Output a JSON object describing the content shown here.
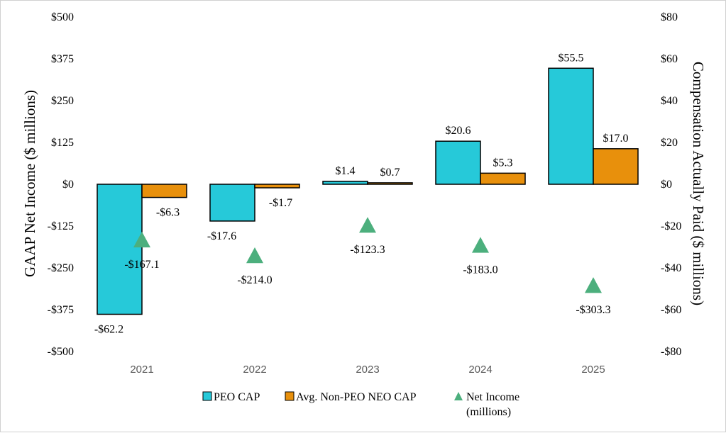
{
  "chart_data": {
    "type": "bar",
    "categories": [
      "2021",
      "2022",
      "2023",
      "2024",
      "2025"
    ],
    "y_left": {
      "label": "GAAP Net Income ($ millions)",
      "ylim": [
        -500,
        500
      ],
      "ticks": [
        "$500",
        "$375",
        "$250",
        "$125",
        "$0",
        "-$125",
        "-$250",
        "-$375",
        "-$500"
      ]
    },
    "y_right": {
      "label": "Compensation Actually Paid ($ millions)",
      "ylim": [
        -80,
        80
      ],
      "ticks": [
        "$80",
        "$60",
        "$40",
        "$20",
        "$0",
        "-$20",
        "-$40",
        "-$60",
        "-$80"
      ]
    },
    "series": [
      {
        "name": "PEO CAP",
        "type": "bar",
        "axis": "right",
        "color": "#26C9D9",
        "values": [
          -62.2,
          -17.6,
          1.4,
          20.6,
          55.5
        ],
        "labels": [
          "-$62.2",
          "-$17.6",
          "$1.4",
          "$20.6",
          "$55.5"
        ]
      },
      {
        "name": "Avg. Non-PEO NEO CAP",
        "type": "bar",
        "axis": "right",
        "color": "#E8900C",
        "values": [
          -6.3,
          -1.7,
          0.7,
          5.3,
          17.0
        ],
        "labels": [
          "-$6.3",
          "-$1.7",
          "$0.7",
          "$5.3",
          "$17.0"
        ]
      },
      {
        "name": "Net Income (millions)",
        "legend_lines": [
          "Net Income",
          "(millions)"
        ],
        "type": "scatter",
        "marker": "triangle",
        "axis": "left",
        "color": "#4CAF7D",
        "values": [
          -167.1,
          -214.0,
          -123.3,
          -183.0,
          -303.3
        ],
        "labels": [
          "-$167.1",
          "-$214.0",
          "-$123.3",
          "-$183.0",
          "-$303.3"
        ]
      }
    ],
    "legend_position": "bottom",
    "grid": false
  }
}
